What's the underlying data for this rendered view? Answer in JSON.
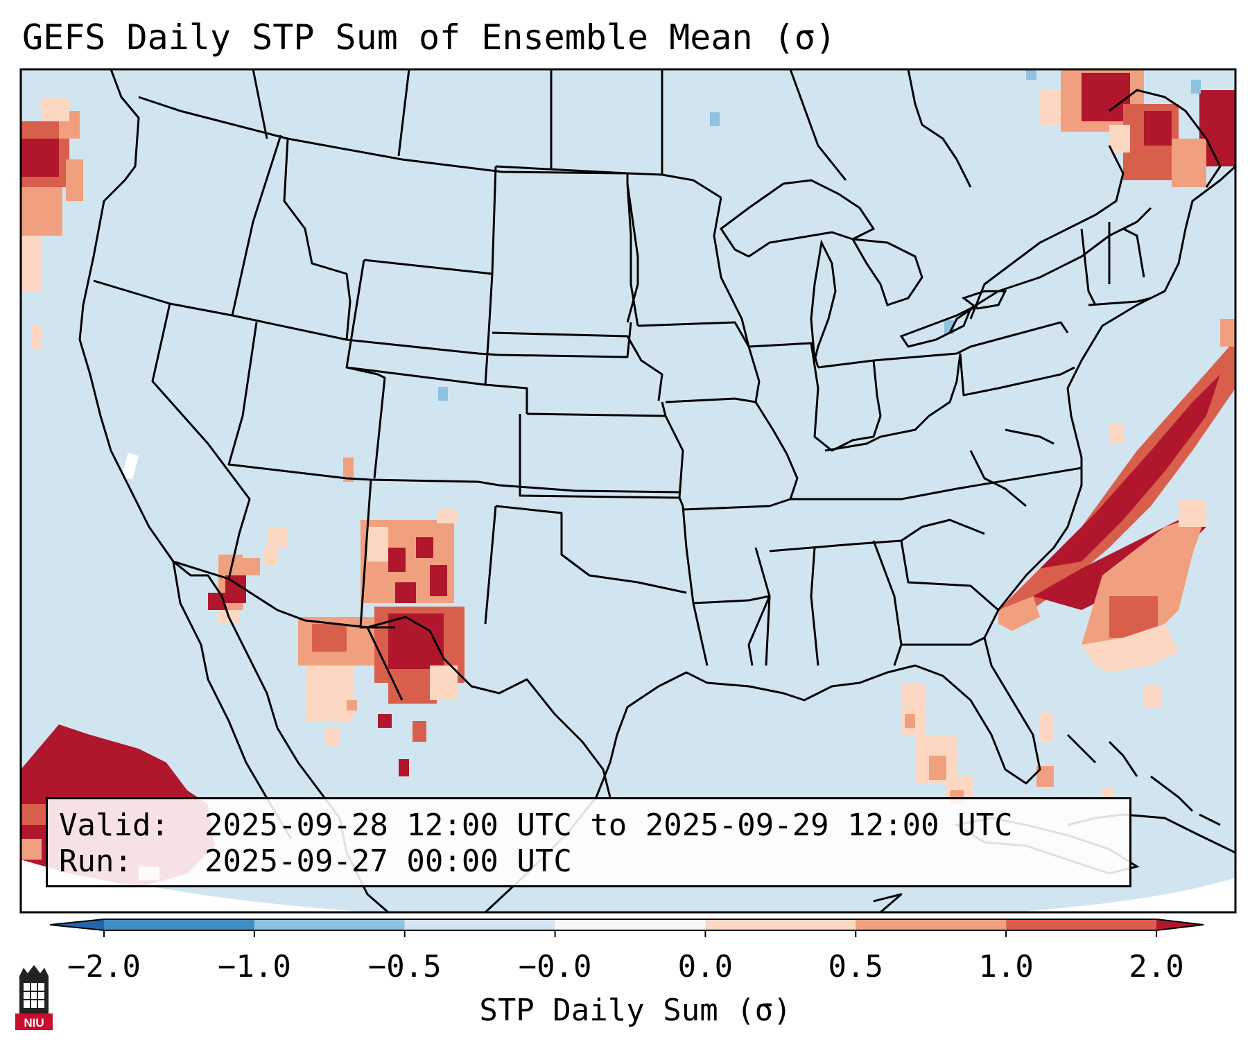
{
  "title": "GEFS Daily STP Sum of Ensemble Mean (σ)",
  "info": {
    "valid_label": "Valid:",
    "valid_value": "2025-09-28 12:00 UTC to 2025-09-29 12:00 UTC",
    "run_label": "Run:",
    "run_value": "2025-09-27 00:00 UTC"
  },
  "colorbar": {
    "label": "STP Daily Sum (σ)",
    "tick_labels": [
      "−2.0",
      "−1.0",
      "−0.5",
      "−0.0",
      "0.0",
      "0.5",
      "1.0",
      "2.0"
    ],
    "bin_colors": [
      "#3d8ec5",
      "#8fc1e0",
      "#d3e5f0",
      "#f7f7f7",
      "#fcd8c3",
      "#f0a07e",
      "#d95f4d",
      "#b0172d"
    ],
    "extend_low_color": "#2166ac",
    "extend_high_color": "#b2182b"
  },
  "map": {
    "background_color": "#d1e5f0",
    "region": "Contiguous United States, northern Mexico, southern Canada",
    "features": [
      "coastlines",
      "state borders",
      "country borders"
    ]
  },
  "logo": {
    "text": "NIU"
  }
}
